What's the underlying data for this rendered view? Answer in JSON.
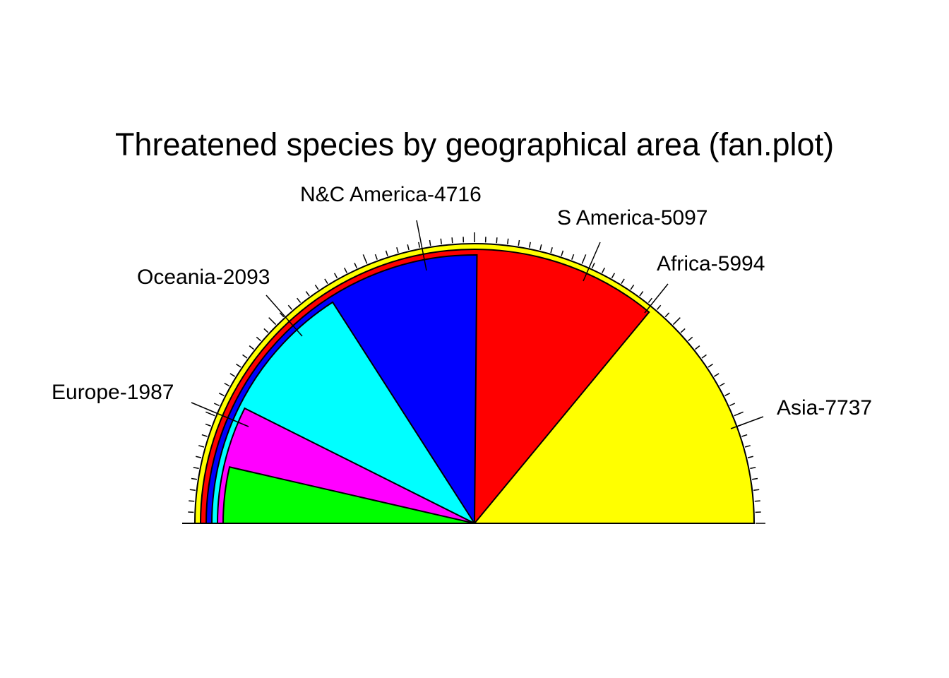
{
  "chart_data": {
    "type": "fan",
    "title": "Threatened species by geographical area (fan.plot)",
    "series": [
      {
        "name": "Asia",
        "value": 7737,
        "color": "#FFFF00",
        "label": "Asia-7737"
      },
      {
        "name": "Africa",
        "value": 5994,
        "color": "#FF0000",
        "label": "Africa-5994"
      },
      {
        "name": "S America",
        "value": 5097,
        "color": "#0000FF",
        "label": "S America-5097"
      },
      {
        "name": "N&C America",
        "value": 4716,
        "color": "#00FFFF",
        "label": "N&C America-4716"
      },
      {
        "name": "Oceania",
        "value": 2093,
        "color": "#FF00FF",
        "label": "Oceania-2093"
      },
      {
        "name": "Europe",
        "value": 1987,
        "color": "#00FF00",
        "label": "Europe-1987"
      }
    ],
    "ticks": true
  }
}
